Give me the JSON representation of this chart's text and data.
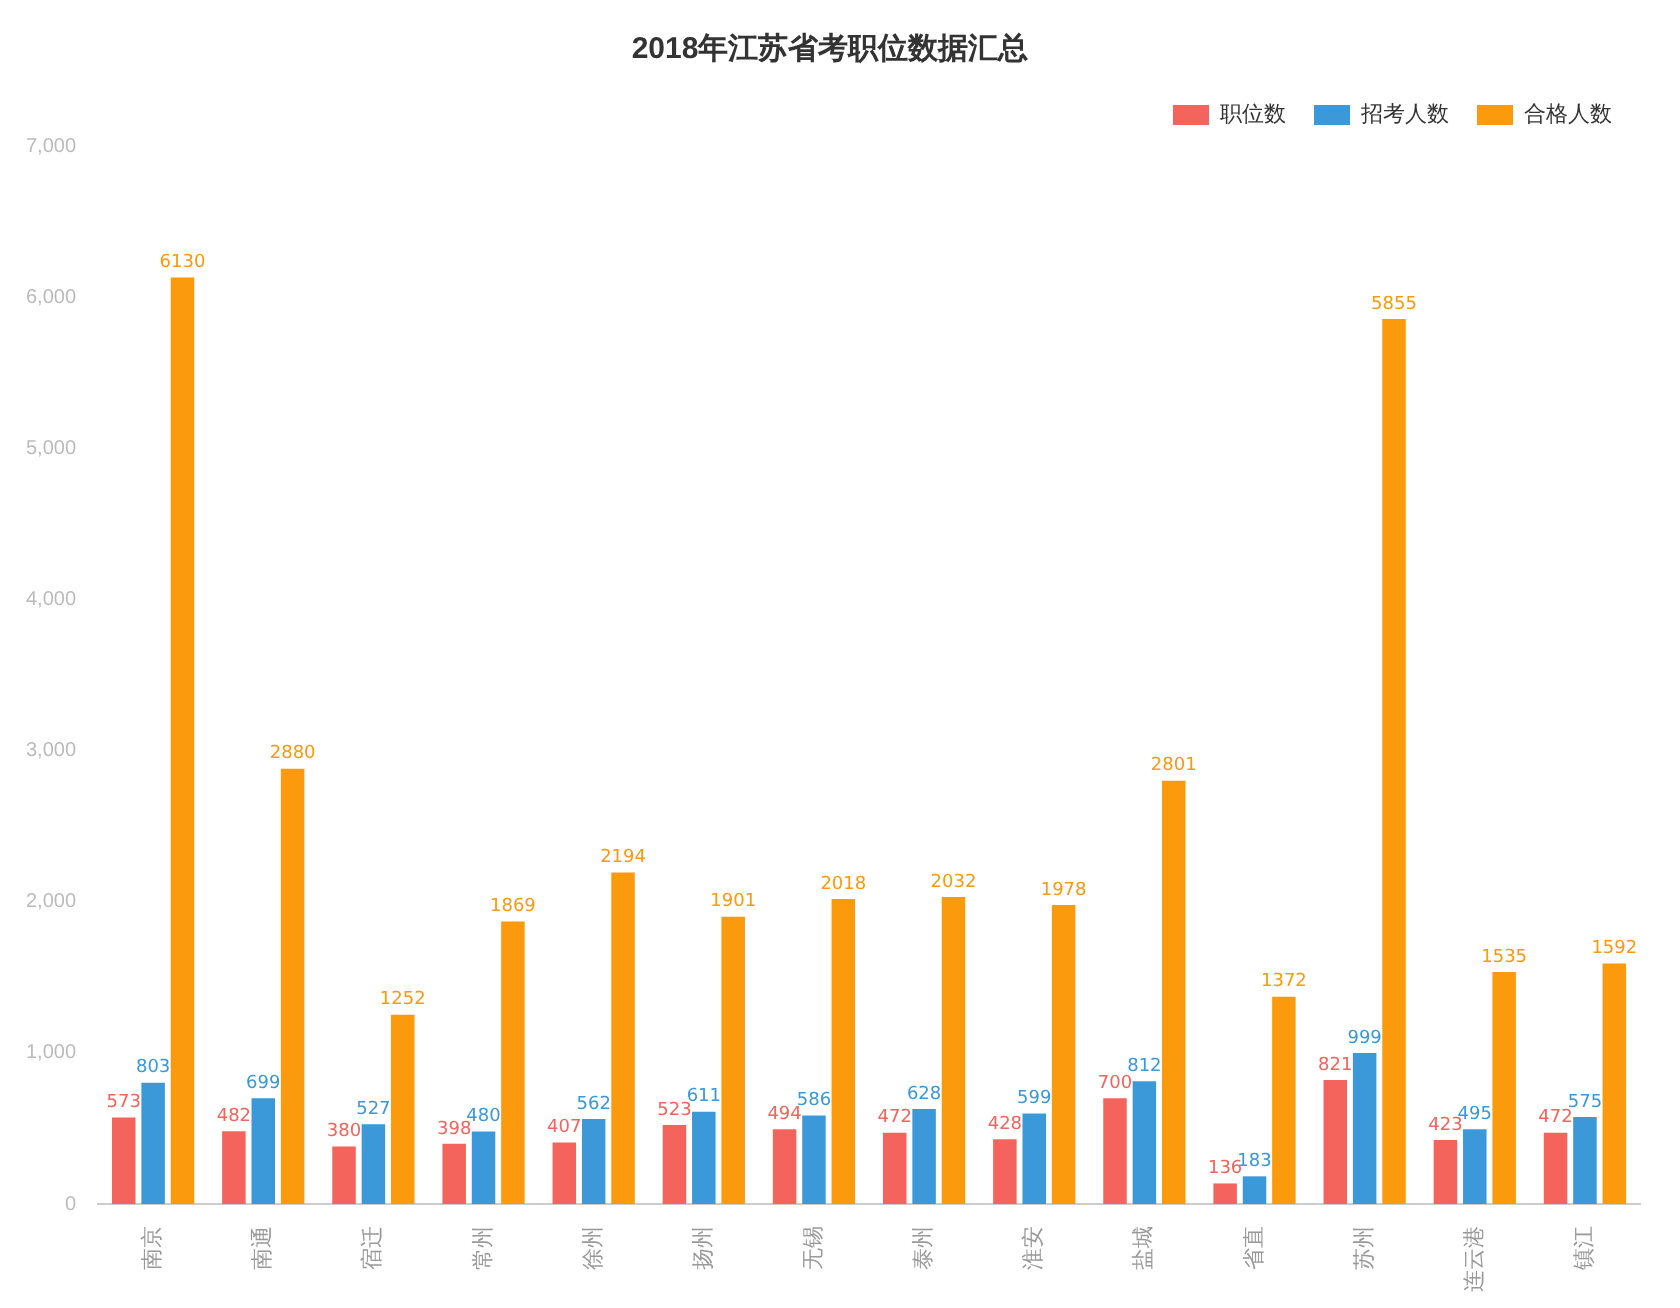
{
  "chart_data": {
    "type": "bar",
    "title": "2018年江苏省考职位数据汇总",
    "categories": [
      "南京",
      "南通",
      "宿迁",
      "常州",
      "徐州",
      "扬州",
      "无锡",
      "泰州",
      "淮安",
      "盐城",
      "省直",
      "苏州",
      "连云港",
      "镇江"
    ],
    "series": [
      {
        "name": "职位数",
        "color": "#f4645c",
        "values": [
          573,
          482,
          380,
          398,
          407,
          523,
          494,
          472,
          428,
          700,
          136,
          821,
          423,
          472
        ]
      },
      {
        "name": "招考人数",
        "color": "#3b98d9",
        "values": [
          803,
          699,
          527,
          480,
          562,
          611,
          586,
          628,
          599,
          812,
          183,
          999,
          495,
          575
        ]
      },
      {
        "name": "合格人数",
        "color": "#fa9a0c",
        "values": [
          6130,
          2880,
          1252,
          1869,
          2194,
          1901,
          2018,
          2032,
          1978,
          2801,
          1372,
          5855,
          1535,
          1592
        ]
      }
    ],
    "ylim": [
      0,
      7000
    ],
    "yticks": [
      0,
      {
        "value": 1000,
        "label": "1,000"
      },
      {
        "value": 2000,
        "label": "2,000"
      },
      {
        "value": 3000,
        "label": "3,000"
      },
      {
        "value": 4000,
        "label": "4,000"
      },
      {
        "value": 5000,
        "label": "5,000"
      },
      {
        "value": 6000,
        "label": "6,000"
      },
      {
        "value": 7000,
        "label": "7,000"
      }
    ],
    "grid": false,
    "legend": "top right",
    "data_labels": true
  }
}
